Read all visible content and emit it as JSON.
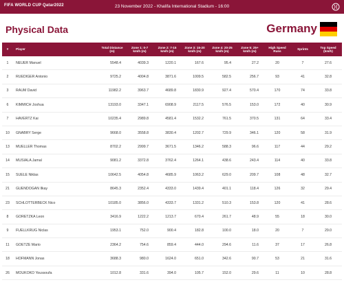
{
  "header": {
    "brand": "FIFA WORLD CUP Qatar2022",
    "match_info": "23 November 2022 - Khalifa International Stadium - 16:00"
  },
  "page": {
    "title": "Physical Data",
    "team": "Germany"
  },
  "colors": {
    "primary": "#8a1538",
    "flag": [
      "#000000",
      "#dd0000",
      "#ffce00"
    ]
  },
  "table": {
    "columns": [
      "#",
      "Player",
      "Total Distance (m)",
      "Zone 1: 0-7 km/h (m)",
      "Zone 2: 7-15 km/h (m)",
      "Zone 3: 15-20 km/h (m)",
      "Zone 4: 20-25 km/h (m)",
      "Zone 5: 25+ km/h (m)",
      "High Speed Runs",
      "Sprints",
      "Top Speed (km/h)"
    ],
    "rows": [
      {
        "num": "1",
        "player": "NEUER Manuel",
        "total": "5548.4",
        "z1": "4039.3",
        "z2": "1220.1",
        "z3": "167.6",
        "z4": "95.4",
        "z5": "27.2",
        "hsr": "20",
        "spr": "7",
        "top": "27.6"
      },
      {
        "num": "2",
        "player": "RUEDIGER Antonio",
        "total": "9725.2",
        "z1": "4004.8",
        "z2": "3871.6",
        "z3": "1009.5",
        "z4": "582.5",
        "z5": "256.7",
        "hsr": "93",
        "spr": "41",
        "top": "32.8"
      },
      {
        "num": "3",
        "player": "RAUM David",
        "total": "11982.2",
        "z1": "3963.7",
        "z2": "4689.8",
        "z3": "1830.9",
        "z4": "927.4",
        "z5": "570.4",
        "hsr": "170",
        "spr": "74",
        "top": "33.8"
      },
      {
        "num": "6",
        "player": "KIMMICH Joshua",
        "total": "13193.0",
        "z1": "3347.1",
        "z2": "6908.9",
        "z3": "2117.5",
        "z4": "576.5",
        "z5": "153.0",
        "hsr": "172",
        "spr": "40",
        "top": "30.9"
      },
      {
        "num": "7",
        "player": "HAVERTZ Kai",
        "total": "10235.4",
        "z1": "2989.8",
        "z2": "4581.4",
        "z3": "1532.2",
        "z4": "761.5",
        "z5": "370.5",
        "hsr": "131",
        "spr": "64",
        "top": "33.4"
      },
      {
        "num": "10",
        "player": "GNABRY Serge",
        "total": "9668.0",
        "z1": "3558.8",
        "z2": "3830.4",
        "z3": "1202.7",
        "z4": "729.9",
        "z5": "346.1",
        "hsr": "120",
        "spr": "58",
        "top": "31.9"
      },
      {
        "num": "13",
        "player": "MUELLER Thomas",
        "total": "8702.2",
        "z1": "2999.7",
        "z2": "3671.5",
        "z3": "1346.2",
        "z4": "588.3",
        "z5": "96.6",
        "hsr": "117",
        "spr": "44",
        "top": "29.2"
      },
      {
        "num": "14",
        "player": "MUSIALA Jamal",
        "total": "9081.2",
        "z1": "3372.8",
        "z2": "3762.4",
        "z3": "1264.1",
        "z4": "438.6",
        "z5": "243.4",
        "hsr": "114",
        "spr": "40",
        "top": "33.8"
      },
      {
        "num": "15",
        "player": "SUELE Niklas",
        "total": "10642.5",
        "z1": "4054.8",
        "z2": "4685.9",
        "z3": "1063.2",
        "z4": "629.0",
        "z5": "209.7",
        "hsr": "108",
        "spr": "48",
        "top": "32.7"
      },
      {
        "num": "21",
        "player": "GUENDOGAN Ilkay",
        "total": "8645.3",
        "z1": "2352.4",
        "z2": "4333.0",
        "z3": "1439.4",
        "z4": "401.1",
        "z5": "118.4",
        "hsr": "126",
        "spr": "32",
        "top": "29.4"
      },
      {
        "num": "23",
        "player": "SCHLOTTERBECK Nico",
        "total": "10185.0",
        "z1": "3856.0",
        "z2": "4333.7",
        "z3": "1331.2",
        "z4": "510.3",
        "z5": "153.8",
        "hsr": "120",
        "spr": "41",
        "top": "28.6"
      },
      {
        "num": "8",
        "player": "GORETZKA Leon",
        "total": "3416.9",
        "z1": "1222.2",
        "z2": "1213.7",
        "z3": "670.4",
        "z4": "261.7",
        "z5": "48.9",
        "hsr": "55",
        "spr": "18",
        "top": "30.0"
      },
      {
        "num": "9",
        "player": "FUELLKRUG Niclas",
        "total": "1953.1",
        "z1": "752.0",
        "z2": "900.4",
        "z3": "182.8",
        "z4": "100.0",
        "z5": "18.0",
        "hsr": "20",
        "spr": "7",
        "top": "29.0"
      },
      {
        "num": "11",
        "player": "GOETZE Mario",
        "total": "2364.2",
        "z1": "754.6",
        "z2": "859.4",
        "z3": "444.0",
        "z4": "294.6",
        "z5": "11.6",
        "hsr": "37",
        "spr": "17",
        "top": "26.8"
      },
      {
        "num": "18",
        "player": "HOFMANN Jonas",
        "total": "3688.3",
        "z1": "980.0",
        "z2": "1624.0",
        "z3": "651.0",
        "z4": "342.6",
        "z5": "90.7",
        "hsr": "53",
        "spr": "21",
        "top": "31.6"
      },
      {
        "num": "26",
        "player": "MOUKOKO Youssoufa",
        "total": "1012.8",
        "z1": "331.6",
        "z2": "394.0",
        "z3": "105.7",
        "z4": "152.0",
        "z5": "29.6",
        "hsr": "11",
        "spr": "10",
        "top": "28.8"
      }
    ]
  }
}
